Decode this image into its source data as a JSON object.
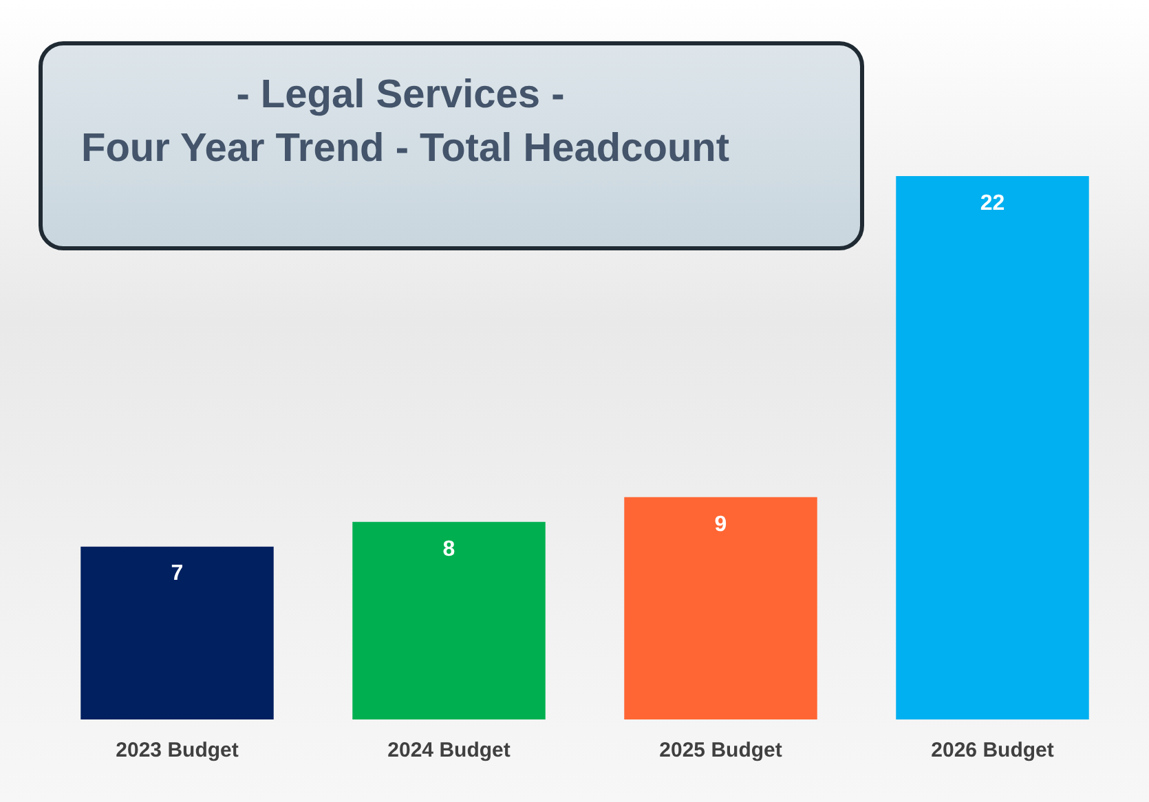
{
  "chart_data": {
    "type": "bar",
    "title": "- Legal Services -",
    "subtitle": "Four Year Trend - Total Headcount",
    "categories": [
      "2023 Budget",
      "2024 Budget",
      "2025 Budget",
      "2026 Budget"
    ],
    "values": [
      7,
      8,
      9,
      22
    ],
    "colors": [
      "#002060",
      "#00b050",
      "#ff6633",
      "#00b0f0"
    ],
    "data_labels": true,
    "grid": false,
    "legend": false
  }
}
